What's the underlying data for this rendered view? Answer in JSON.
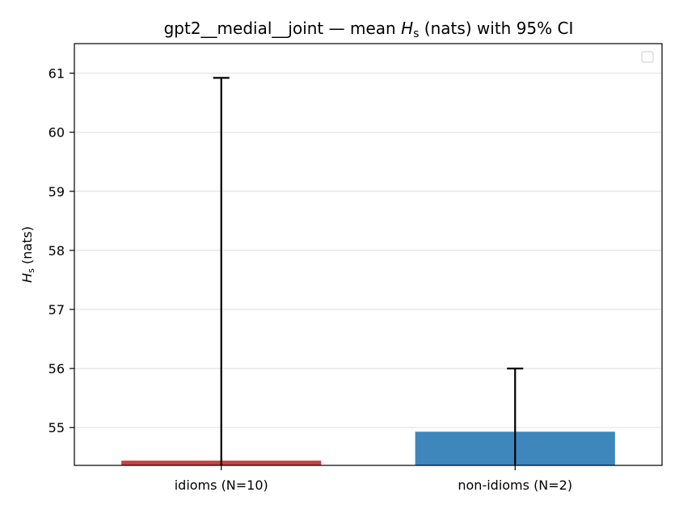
{
  "chart_data": {
    "type": "bar",
    "title_parts": {
      "prefix": "gpt2__medial__joint — mean ",
      "symbol": "H",
      "subscript": "s",
      "suffix": " (nats) with 95% CI"
    },
    "ylabel_parts": {
      "symbol": "H",
      "subscript": "s",
      "suffix": " (nats)"
    },
    "categories": [
      "idioms (N=10)",
      "non-idioms (N=2)"
    ],
    "values": [
      54.44,
      54.93
    ],
    "ci_upper": [
      60.92,
      56.0
    ],
    "colors": [
      "#c84141",
      "#3d87bc"
    ],
    "ylim": [
      54.36,
      61.5
    ],
    "yticks": [
      55,
      56,
      57,
      58,
      59,
      60,
      61
    ],
    "grid": "horizontal",
    "legend": "top-right (empty)"
  }
}
